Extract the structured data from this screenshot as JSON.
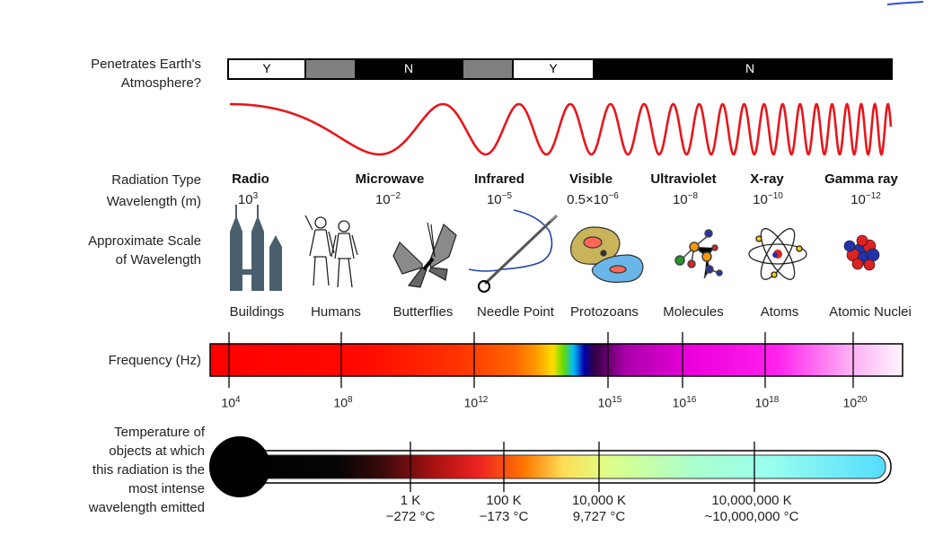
{
  "row_labels": {
    "atmosphere": [
      "Penetrates Earth's",
      "Atmosphere?"
    ],
    "radiation_type": "Radiation Type",
    "wavelength": "Wavelength (m)",
    "scale": [
      "Approximate Scale",
      "of Wavelength"
    ],
    "frequency": "Frequency (Hz)",
    "temperature": [
      "Temperature of",
      "objects at which",
      "this radiation is the",
      "most intense",
      "wavelength emitted"
    ]
  },
  "atmosphere_bar": [
    {
      "label": "Y",
      "fill": "#ffffff"
    },
    {
      "label": "",
      "fill": "#808080"
    },
    {
      "label": "N",
      "fill": "#000000"
    },
    {
      "label": "",
      "fill": "#808080"
    },
    {
      "label": "Y",
      "fill": "#ffffff"
    },
    {
      "label": "N",
      "fill": "#000000"
    }
  ],
  "radiation_types": [
    {
      "name": "Radio",
      "wl_base": "10",
      "wl_exp": "3"
    },
    {
      "name": "Microwave",
      "wl_base": "10",
      "wl_exp": "−2"
    },
    {
      "name": "Infrared",
      "wl_base": "10",
      "wl_exp": "−5"
    },
    {
      "name": "Visible",
      "wl_base": "0.5×10",
      "wl_exp": "−6"
    },
    {
      "name": "Ultraviolet",
      "wl_base": "10",
      "wl_exp": "−8"
    },
    {
      "name": "X-ray",
      "wl_base": "10",
      "wl_exp": "−10"
    },
    {
      "name": "Gamma ray",
      "wl_base": "10",
      "wl_exp": "−12"
    }
  ],
  "scale_items": [
    "Buildings",
    "Humans",
    "Butterflies",
    "Needle Point",
    "Protozoans",
    "Molecules",
    "Atoms",
    "Atomic Nuclei"
  ],
  "scale_icons": [
    "buildings-icon",
    "humans-icon",
    "butterfly-icon",
    "needle-icon",
    "protozoan-icon",
    "molecule-icon",
    "atom-icon",
    "nucleus-icon"
  ],
  "frequency_ticks": [
    {
      "base": "10",
      "exp": "4"
    },
    {
      "base": "10",
      "exp": "8"
    },
    {
      "base": "10",
      "exp": "12"
    },
    {
      "base": "10",
      "exp": "15"
    },
    {
      "base": "10",
      "exp": "16"
    },
    {
      "base": "10",
      "exp": "18"
    },
    {
      "base": "10",
      "exp": "20"
    }
  ],
  "temperature_ticks": [
    {
      "k": "1 K",
      "c": "−272 °C"
    },
    {
      "k": "100 K",
      "c": "−173 °C"
    },
    {
      "k": "10,000 K",
      "c": "9,727 °C"
    },
    {
      "k": "10,000,000 K",
      "c": "~10,000,000 °C"
    }
  ],
  "colors": {
    "wave": "#e8161b",
    "accent_line": "#2b4fd8"
  }
}
